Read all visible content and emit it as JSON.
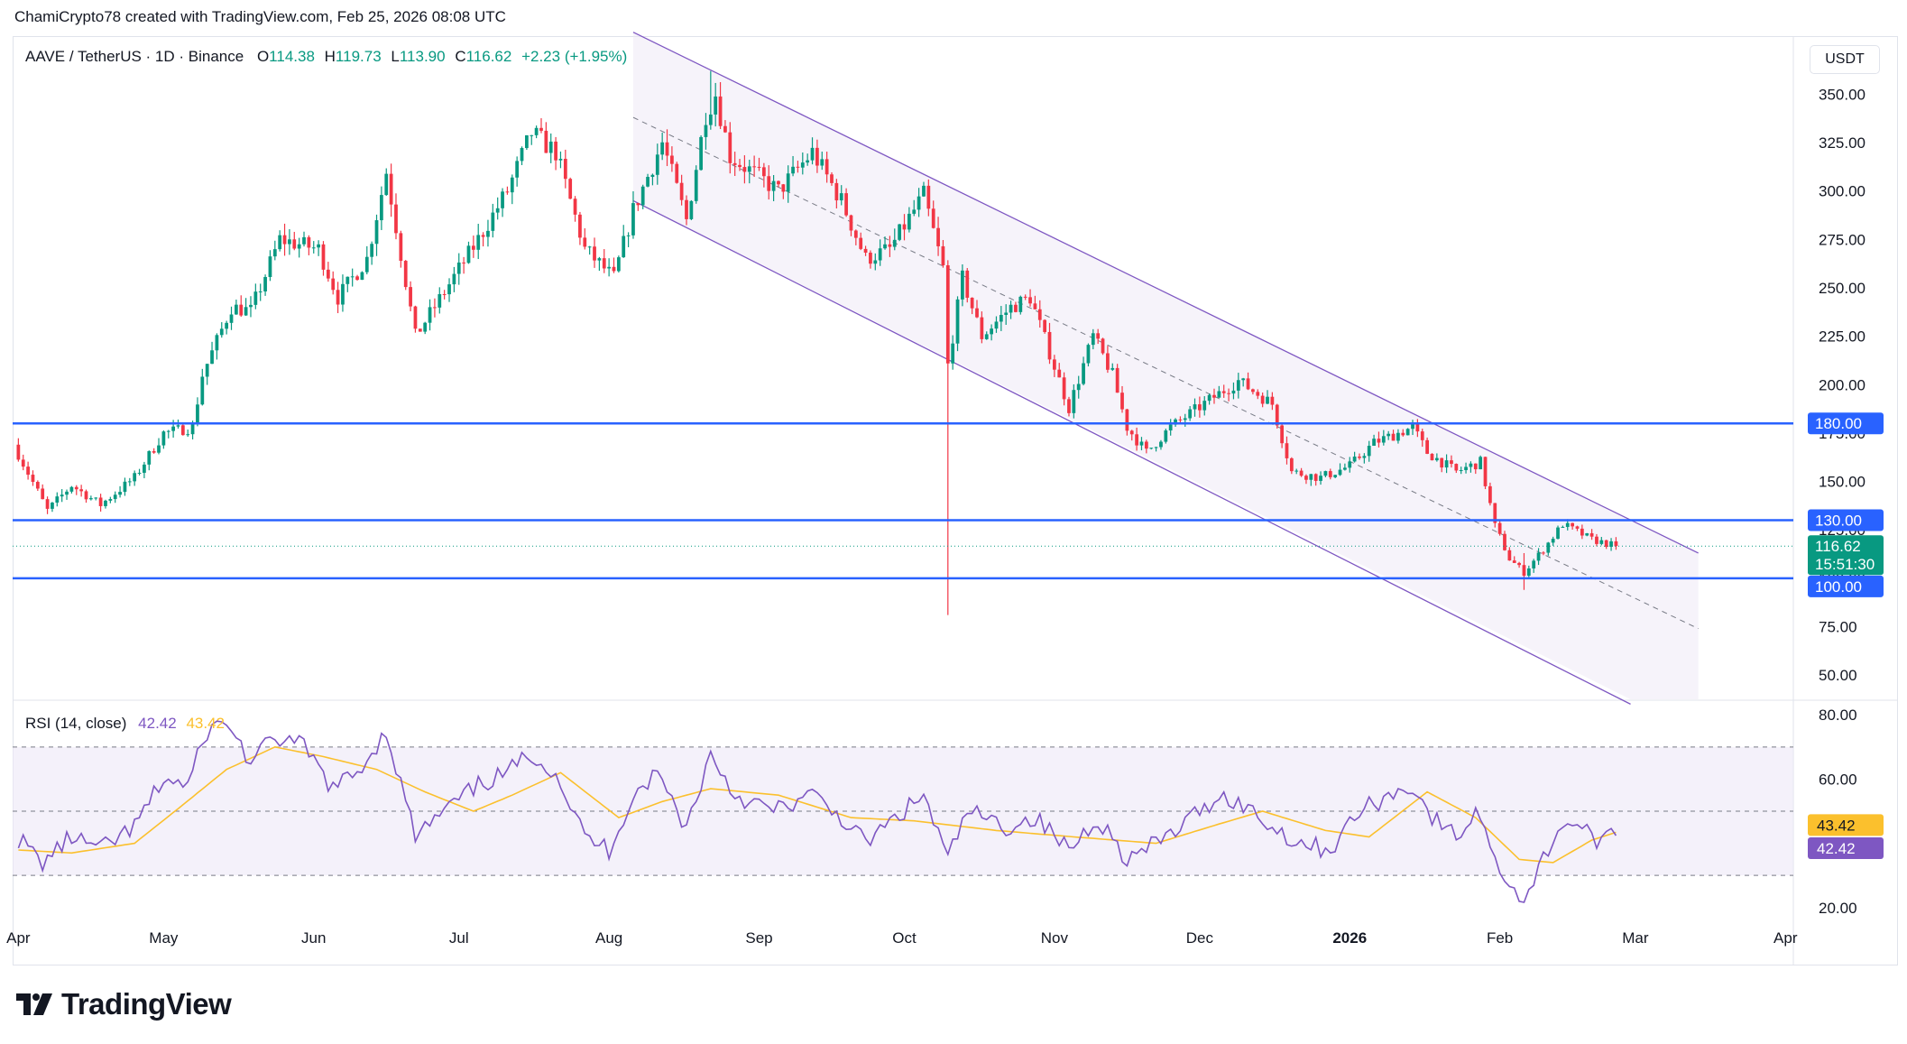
{
  "caption": "ChamiCrypto78 created with TradingView.com, Feb 25, 2026 08:08 UTC",
  "brand": "TradingView",
  "unit_label": "USDT",
  "legend": {
    "symbol": "AAVE / TetherUS · 1D · Binance",
    "open_label": "O",
    "open": "114.38",
    "high_label": "H",
    "high": "119.73",
    "low_label": "L",
    "low": "113.90",
    "close_label": "C",
    "close": "116.62",
    "change": "+2.23 (+1.95%)"
  },
  "rsi_legend": {
    "label": "RSI (14, close)",
    "rsi": "42.42",
    "ma": "43.42"
  },
  "colors": {
    "up": "#089981",
    "down": "#f23645",
    "level": "#2962ff",
    "channel": "#7e57c2",
    "rsi": "#7e57c2",
    "rsi_ma": "#fbc02d",
    "price_badge": "#089981"
  },
  "chart_data": [
    {
      "type": "candlestick",
      "y_scale": "linear",
      "ylim": [
        37.5,
        380
      ],
      "y_ticks": [
        "350.00",
        "325.00",
        "300.00",
        "275.00",
        "250.00",
        "225.00",
        "200.00",
        "175.00",
        "150.00",
        "125.00",
        "100.00",
        "75.00",
        "50.00"
      ],
      "x_ticks": [
        "Apr",
        "May",
        "Jun",
        "Jul",
        "Aug",
        "Sep",
        "Oct",
        "Nov",
        "Dec",
        "2026",
        "Feb",
        "Mar",
        "Apr"
      ],
      "x_tick_dates": [
        "2025-04-01",
        "2025-05-01",
        "2025-06-01",
        "2025-07-01",
        "2025-08-01",
        "2025-09-01",
        "2025-10-01",
        "2025-11-01",
        "2025-12-01",
        "2026-01-01",
        "2026-02-01",
        "2026-03-01",
        "2026-04-01"
      ],
      "x_range": [
        "2025-03-31",
        "2026-04-03"
      ],
      "levels": [
        {
          "value": 180.0,
          "label": "180.00"
        },
        {
          "value": 130.0,
          "label": "130.00"
        },
        {
          "value": 100.0,
          "label": "100.00"
        }
      ],
      "last_price": {
        "value": 116.62,
        "label": "116.62",
        "countdown": "15:51:30"
      },
      "channel": {
        "upper": [
          [
            "2025-08-06",
            382
          ],
          [
            "2026-03-14",
            113
          ]
        ],
        "lower": [
          [
            "2025-08-06",
            295
          ],
          [
            "2026-02-28",
            35
          ]
        ],
        "mid": [
          [
            "2025-08-06",
            338
          ],
          [
            "2026-03-14",
            74
          ]
        ],
        "fill_end": "2026-03-14"
      },
      "anchors": [
        [
          "2025-03-31",
          169
        ],
        [
          "2025-04-07",
          135
        ],
        [
          "2025-04-12",
          148
        ],
        [
          "2025-04-18",
          138
        ],
        [
          "2025-04-25",
          152
        ],
        [
          "2025-05-01",
          175
        ],
        [
          "2025-05-07",
          178
        ],
        [
          "2025-05-09",
          205
        ],
        [
          "2025-05-15",
          240
        ],
        [
          "2025-05-19",
          238
        ],
        [
          "2025-05-25",
          275
        ],
        [
          "2025-06-02",
          270
        ],
        [
          "2025-06-06",
          245
        ],
        [
          "2025-06-12",
          265
        ],
        [
          "2025-06-16",
          310
        ],
        [
          "2025-06-22",
          225
        ],
        [
          "2025-06-28",
          248
        ],
        [
          "2025-07-05",
          275
        ],
        [
          "2025-07-11",
          300
        ],
        [
          "2025-07-16",
          330
        ],
        [
          "2025-07-21",
          320
        ],
        [
          "2025-07-27",
          270
        ],
        [
          "2025-08-02",
          255
        ],
        [
          "2025-08-06",
          290
        ],
        [
          "2025-08-12",
          325
        ],
        [
          "2025-08-17",
          285
        ],
        [
          "2025-08-21",
          340
        ],
        [
          "2025-08-23",
          350
        ],
        [
          "2025-08-26",
          318
        ],
        [
          "2025-09-05",
          300
        ],
        [
          "2025-09-12",
          320
        ],
        [
          "2025-09-18",
          295
        ],
        [
          "2025-09-23",
          265
        ],
        [
          "2025-09-28",
          270
        ],
        [
          "2025-10-05",
          298
        ],
        [
          "2025-10-09",
          260
        ],
        [
          "2025-10-10",
          210
        ],
        [
          "2025-10-13",
          255
        ],
        [
          "2025-10-17",
          225
        ],
        [
          "2025-10-23",
          240
        ],
        [
          "2025-10-27",
          245
        ],
        [
          "2025-11-04",
          188
        ],
        [
          "2025-11-09",
          225
        ],
        [
          "2025-11-13",
          205
        ],
        [
          "2025-11-16",
          178
        ],
        [
          "2025-11-20",
          165
        ],
        [
          "2025-11-25",
          178
        ],
        [
          "2025-12-03",
          192
        ],
        [
          "2025-12-09",
          202
        ],
        [
          "2025-12-16",
          190
        ],
        [
          "2025-12-20",
          155
        ],
        [
          "2025-12-26",
          152
        ],
        [
          "2026-01-01",
          158
        ],
        [
          "2026-01-06",
          170
        ],
        [
          "2026-01-14",
          178
        ],
        [
          "2026-01-17",
          165
        ],
        [
          "2026-01-23",
          155
        ],
        [
          "2026-01-28",
          160
        ],
        [
          "2026-01-31",
          127
        ],
        [
          "2026-02-03",
          110
        ],
        [
          "2026-02-06",
          103
        ],
        [
          "2026-02-10",
          115
        ],
        [
          "2026-02-14",
          128
        ],
        [
          "2026-02-20",
          120
        ],
        [
          "2026-02-25",
          116.62
        ]
      ],
      "wick_marks": [
        {
          "date": "2025-08-22",
          "high": 362,
          "low": 345
        },
        {
          "date": "2025-10-10",
          "high": 262,
          "low": 81
        },
        {
          "date": "2026-02-06",
          "high": 113,
          "low": 94
        }
      ]
    },
    {
      "type": "line",
      "title": "RSI (14, close)",
      "ylim": [
        16,
        84
      ],
      "y_ticks": [
        "80.00",
        "60.00",
        "20.00"
      ],
      "bands": {
        "upper": 70,
        "middle": 50,
        "lower": 30
      },
      "badges": [
        {
          "value": 43.42,
          "label": "43.42",
          "series": "ma"
        },
        {
          "value": 42.42,
          "label": "42.42",
          "series": "rsi"
        }
      ],
      "rsi_anchors": [
        [
          "2025-03-31",
          43
        ],
        [
          "2025-04-06",
          34
        ],
        [
          "2025-04-12",
          42
        ],
        [
          "2025-04-18",
          38
        ],
        [
          "2025-04-25",
          45
        ],
        [
          "2025-05-01",
          60
        ],
        [
          "2025-05-06",
          58
        ],
        [
          "2025-05-10",
          75
        ],
        [
          "2025-05-14",
          78
        ],
        [
          "2025-05-19",
          65
        ],
        [
          "2025-05-24",
          73
        ],
        [
          "2025-05-30",
          70
        ],
        [
          "2025-06-05",
          57
        ],
        [
          "2025-06-10",
          62
        ],
        [
          "2025-06-16",
          75
        ],
        [
          "2025-06-22",
          42
        ],
        [
          "2025-06-28",
          50
        ],
        [
          "2025-07-05",
          58
        ],
        [
          "2025-07-11",
          62
        ],
        [
          "2025-07-16",
          68
        ],
        [
          "2025-07-21",
          62
        ],
        [
          "2025-07-27",
          42
        ],
        [
          "2025-08-01",
          38
        ],
        [
          "2025-08-06",
          55
        ],
        [
          "2025-08-11",
          62
        ],
        [
          "2025-08-17",
          45
        ],
        [
          "2025-08-22",
          68
        ],
        [
          "2025-08-27",
          55
        ],
        [
          "2025-09-04",
          50
        ],
        [
          "2025-09-12",
          55
        ],
        [
          "2025-09-18",
          48
        ],
        [
          "2025-09-23",
          40
        ],
        [
          "2025-10-05",
          55
        ],
        [
          "2025-10-10",
          35
        ],
        [
          "2025-10-14",
          50
        ],
        [
          "2025-10-22",
          45
        ],
        [
          "2025-10-28",
          48
        ],
        [
          "2025-11-04",
          38
        ],
        [
          "2025-11-10",
          48
        ],
        [
          "2025-11-16",
          35
        ],
        [
          "2025-11-20",
          38
        ],
        [
          "2025-11-27",
          45
        ],
        [
          "2025-12-05",
          55
        ],
        [
          "2025-12-10",
          52
        ],
        [
          "2025-12-16",
          45
        ],
        [
          "2025-12-22",
          40
        ],
        [
          "2025-12-28",
          38
        ],
        [
          "2026-01-03",
          50
        ],
        [
          "2026-01-08",
          54
        ],
        [
          "2026-01-14",
          58
        ],
        [
          "2026-01-18",
          48
        ],
        [
          "2026-01-23",
          42
        ],
        [
          "2026-01-28",
          50
        ],
        [
          "2026-01-31",
          34
        ],
        [
          "2026-02-06",
          22
        ],
        [
          "2026-02-09",
          32
        ],
        [
          "2026-02-14",
          47
        ],
        [
          "2026-02-18",
          45
        ],
        [
          "2026-02-22",
          40
        ],
        [
          "2026-02-25",
          42.42
        ]
      ],
      "ma_anchors": [
        [
          "2025-03-31",
          38
        ],
        [
          "2025-04-12",
          37
        ],
        [
          "2025-04-25",
          40
        ],
        [
          "2025-05-05",
          52
        ],
        [
          "2025-05-14",
          63
        ],
        [
          "2025-05-24",
          70
        ],
        [
          "2025-06-03",
          67
        ],
        [
          "2025-06-14",
          63
        ],
        [
          "2025-06-24",
          56
        ],
        [
          "2025-07-04",
          50
        ],
        [
          "2025-07-12",
          55
        ],
        [
          "2025-07-22",
          62
        ],
        [
          "2025-08-03",
          48
        ],
        [
          "2025-08-12",
          53
        ],
        [
          "2025-08-22",
          57
        ],
        [
          "2025-09-05",
          55
        ],
        [
          "2025-09-20",
          48
        ],
        [
          "2025-10-03",
          47
        ],
        [
          "2025-10-20",
          44
        ],
        [
          "2025-11-05",
          42
        ],
        [
          "2025-11-22",
          40
        ],
        [
          "2025-12-05",
          46
        ],
        [
          "2025-12-14",
          50
        ],
        [
          "2025-12-27",
          44
        ],
        [
          "2026-01-05",
          42
        ],
        [
          "2026-01-17",
          56
        ],
        [
          "2026-01-27",
          48
        ],
        [
          "2026-02-05",
          35
        ],
        [
          "2026-02-12",
          34
        ],
        [
          "2026-02-20",
          41
        ],
        [
          "2026-02-25",
          43.42
        ]
      ]
    }
  ]
}
